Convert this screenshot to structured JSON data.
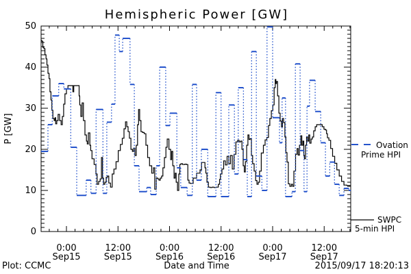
{
  "title": "Hemispheric Power [GW]",
  "footer": {
    "plot_credit": "Plot: CCMC",
    "timestamp": "2015/09/17 18:20:13"
  },
  "axes": {
    "y": {
      "label": "P [GW]",
      "min": 0,
      "max": 50,
      "major_ticks": [
        0,
        10,
        20,
        30,
        40,
        50
      ],
      "minor_step": 1
    },
    "x": {
      "label": "Date and Time",
      "minor_step_hours": 2,
      "start_hours": -5.9,
      "end_hours": 66.2,
      "major_ticks": [
        {
          "hours": 0,
          "time": "0:00",
          "date": "Sep15"
        },
        {
          "hours": 12,
          "time": "12:00",
          "date": "Sep15"
        },
        {
          "hours": 24,
          "time": "0:00",
          "date": "Sep16"
        },
        {
          "hours": 36,
          "time": "12:00",
          "date": "Sep16"
        },
        {
          "hours": 48,
          "time": "0:00",
          "date": "Sep17"
        },
        {
          "hours": 60,
          "time": "12:00",
          "date": "Sep17"
        }
      ]
    }
  },
  "legend": {
    "ovation": {
      "line1": "Ovation",
      "line2": "Prime HPI",
      "color": "#2453cc",
      "style": "dashed"
    },
    "swpc": {
      "line1": "SWPC",
      "line2": "5-min HPI",
      "color": "#000000",
      "style": "solid"
    }
  },
  "chart_data": {
    "type": "line",
    "title": "Hemispheric Power [GW]",
    "xlabel": "Date and Time",
    "ylabel": "P [GW]",
    "ylim": [
      0,
      50
    ],
    "x_unit": "hours since 2015-09-15 00:00",
    "grid": false,
    "series": [
      {
        "name": "SWPC 5-min HPI",
        "color": "#000000",
        "style": "solid",
        "points": [
          [
            -5.9,
            46.5
          ],
          [
            -5.6,
            46.3
          ],
          [
            -5.4,
            44.8
          ],
          [
            -5.1,
            44.5
          ],
          [
            -4.9,
            43
          ],
          [
            -4.6,
            42
          ],
          [
            -4.5,
            40.5
          ],
          [
            -4.1,
            38.5
          ],
          [
            -4.0,
            37.2
          ],
          [
            -3.7,
            34
          ],
          [
            -3.5,
            32
          ],
          [
            -3.3,
            29.5
          ],
          [
            -3.0,
            27.5
          ],
          [
            -2.7,
            27
          ],
          [
            -2.6,
            27.7
          ],
          [
            -2.4,
            26.2
          ],
          [
            -2.1,
            27
          ],
          [
            -1.8,
            28.5
          ],
          [
            -1.4,
            27
          ],
          [
            -1.1,
            26
          ],
          [
            -0.8,
            28
          ],
          [
            -0.5,
            31
          ],
          [
            -0.2,
            33.5
          ],
          [
            0.2,
            34.7
          ],
          [
            0.5,
            35.5
          ],
          [
            1.0,
            35.5
          ],
          [
            1.4,
            35.5
          ],
          [
            1.6,
            34
          ],
          [
            1.8,
            35.5
          ],
          [
            2.4,
            35.5
          ],
          [
            2.9,
            35.5
          ],
          [
            3.0,
            33
          ],
          [
            3.2,
            30.8
          ],
          [
            3.5,
            28
          ],
          [
            3.8,
            31.3
          ],
          [
            4.1,
            27
          ],
          [
            4.5,
            23.5
          ],
          [
            4.8,
            22
          ],
          [
            4.9,
            21.3
          ],
          [
            5.3,
            24
          ],
          [
            5.6,
            21
          ],
          [
            5.7,
            19.7
          ],
          [
            6.2,
            17.7
          ],
          [
            6.7,
            16.3
          ],
          [
            7.0,
            14
          ],
          [
            7.3,
            11.5
          ],
          [
            7.7,
            12.2
          ],
          [
            8.0,
            12.8
          ],
          [
            8.3,
            18
          ],
          [
            8.5,
            13
          ],
          [
            8.8,
            11.5
          ],
          [
            9.1,
            12
          ],
          [
            9.4,
            13.2
          ],
          [
            9.7,
            13.5
          ],
          [
            10.0,
            11.8
          ],
          [
            10.5,
            10.8
          ],
          [
            10.8,
            14
          ],
          [
            11.3,
            15.2
          ],
          [
            11.8,
            17
          ],
          [
            12.3,
            19.7
          ],
          [
            12.8,
            21.2
          ],
          [
            13.2,
            22.7
          ],
          [
            13.6,
            25
          ],
          [
            13.9,
            26.7
          ],
          [
            14.2,
            25.5
          ],
          [
            14.5,
            24.3
          ],
          [
            14.8,
            22.7
          ],
          [
            15.2,
            20
          ],
          [
            15.5,
            19.5
          ],
          [
            15.8,
            20.3
          ],
          [
            16.1,
            18.5
          ],
          [
            16.4,
            21
          ],
          [
            16.7,
            26
          ],
          [
            16.9,
            29.7
          ],
          [
            17.2,
            27
          ],
          [
            17.5,
            24.3
          ],
          [
            17.9,
            24.1
          ],
          [
            18.3,
            23.8
          ],
          [
            18.7,
            21
          ],
          [
            19.1,
            18
          ],
          [
            19.6,
            16
          ],
          [
            20.1,
            14.2
          ],
          [
            20.4,
            15.5
          ],
          [
            20.7,
            10.3
          ],
          [
            21.1,
            13
          ],
          [
            21.4,
            12.8
          ],
          [
            21.7,
            12.5
          ],
          [
            22.0,
            13
          ],
          [
            22.3,
            13.5
          ],
          [
            22.6,
            15.5
          ],
          [
            23.0,
            18
          ],
          [
            23.3,
            20.5
          ],
          [
            23.6,
            22.5
          ],
          [
            24.1,
            20
          ],
          [
            24.4,
            17.5
          ],
          [
            24.6,
            19.5
          ],
          [
            24.9,
            16
          ],
          [
            25.2,
            13
          ],
          [
            25.4,
            14.2
          ],
          [
            25.7,
            12
          ],
          [
            26.0,
            10
          ],
          [
            26.3,
            14
          ],
          [
            26.5,
            16.3
          ],
          [
            26.8,
            16.5
          ],
          [
            27.3,
            16.3
          ],
          [
            27.8,
            16.4
          ],
          [
            28.1,
            16.3
          ],
          [
            28.4,
            12.5
          ],
          [
            28.7,
            11.8
          ],
          [
            29.0,
            11.7
          ],
          [
            29.3,
            11.7
          ],
          [
            29.7,
            13
          ],
          [
            30.1,
            13
          ],
          [
            30.5,
            14.2
          ],
          [
            30.9,
            14.2
          ],
          [
            31.3,
            15
          ],
          [
            31.6,
            16.8
          ],
          [
            32.1,
            16.8
          ],
          [
            32.4,
            15.5
          ],
          [
            32.5,
            14.2
          ],
          [
            32.9,
            12
          ],
          [
            33.2,
            10.8
          ],
          [
            33.7,
            10.7
          ],
          [
            34.1,
            10.8
          ],
          [
            34.6,
            10.7
          ],
          [
            35.1,
            10.8
          ],
          [
            35.6,
            11.5
          ],
          [
            35.7,
            12.7
          ],
          [
            36.0,
            14
          ],
          [
            36.4,
            15.2
          ],
          [
            36.8,
            17.2
          ],
          [
            37.2,
            16.2
          ],
          [
            37.6,
            18.3
          ],
          [
            38.0,
            16.5
          ],
          [
            38.4,
            18.5
          ],
          [
            38.8,
            15.2
          ],
          [
            39.2,
            18.8
          ],
          [
            39.7,
            21.8
          ],
          [
            40.0,
            22.2
          ],
          [
            40.4,
            21.8
          ],
          [
            40.7,
            22
          ],
          [
            41.0,
            20
          ],
          [
            41.3,
            16
          ],
          [
            41.5,
            14.5
          ],
          [
            41.8,
            17
          ],
          [
            42.1,
            21
          ],
          [
            42.4,
            23.5
          ],
          [
            42.6,
            22.4
          ],
          [
            42.9,
            22.6
          ],
          [
            43.2,
            18.5
          ],
          [
            43.5,
            16.5
          ],
          [
            43.9,
            14.7
          ],
          [
            44.2,
            12.4
          ],
          [
            44.5,
            11.5
          ],
          [
            44.8,
            12
          ],
          [
            45.1,
            14.7
          ],
          [
            45.6,
            19.1
          ],
          [
            46.1,
            21
          ],
          [
            46.4,
            22.3
          ],
          [
            46.9,
            22.9
          ],
          [
            47.2,
            25.8
          ],
          [
            47.5,
            27.5
          ],
          [
            47.9,
            29.4
          ],
          [
            48.2,
            30.8
          ],
          [
            48.5,
            35
          ],
          [
            48.7,
            37
          ],
          [
            48.8,
            36
          ],
          [
            49.0,
            36.5
          ],
          [
            49.3,
            33
          ],
          [
            49.6,
            28.8
          ],
          [
            49.9,
            26.9
          ],
          [
            50.2,
            25.5
          ],
          [
            50.4,
            27.5
          ],
          [
            50.7,
            26.5
          ],
          [
            51.0,
            23
          ],
          [
            51.2,
            19.2
          ],
          [
            51.5,
            16.9
          ],
          [
            51.8,
            11.6
          ],
          [
            52.2,
            11
          ],
          [
            52.5,
            11.5
          ],
          [
            52.8,
            11
          ],
          [
            53.1,
            14.7
          ],
          [
            53.6,
            18.8
          ],
          [
            53.8,
            20.2
          ],
          [
            54.1,
            18.6
          ],
          [
            54.4,
            21
          ],
          [
            54.7,
            23.3
          ],
          [
            54.9,
            21
          ],
          [
            55.2,
            22
          ],
          [
            55.3,
            18.5
          ],
          [
            55.5,
            17.7
          ],
          [
            55.8,
            21
          ],
          [
            56.0,
            23
          ],
          [
            56.3,
            22
          ],
          [
            56.5,
            23.5
          ],
          [
            56.8,
            21.5
          ],
          [
            57.1,
            22.5
          ],
          [
            57.4,
            23
          ],
          [
            57.7,
            24.5
          ],
          [
            58.1,
            25.5
          ],
          [
            58.4,
            26
          ],
          [
            58.9,
            26
          ],
          [
            59.3,
            26
          ],
          [
            59.8,
            25.5
          ],
          [
            60.1,
            24.9
          ],
          [
            60.5,
            24.7
          ],
          [
            60.6,
            23.8
          ],
          [
            60.9,
            22.8
          ],
          [
            61.3,
            22.2
          ],
          [
            61.7,
            20.2
          ],
          [
            62.2,
            18.3
          ],
          [
            62.7,
            16.6
          ],
          [
            63.2,
            15
          ],
          [
            63.8,
            13.5
          ],
          [
            64.3,
            12.2
          ],
          [
            64.9,
            11.3
          ],
          [
            65.6,
            11.2
          ],
          [
            66.2,
            11.2
          ]
        ]
      },
      {
        "name": "Ovation Prime HPI",
        "color": "#2453cc",
        "style": "stepped-dotted",
        "steps": [
          [
            -5.9,
            -4.3,
            19.5
          ],
          [
            -4.3,
            -3.3,
            26
          ],
          [
            -3.3,
            -1.8,
            33
          ],
          [
            -1.8,
            -0.6,
            36
          ],
          [
            -0.6,
            1.0,
            34.7
          ],
          [
            1.0,
            2.4,
            20.5
          ],
          [
            2.4,
            4.6,
            8.8
          ],
          [
            4.6,
            5.7,
            12.5
          ],
          [
            5.7,
            6.9,
            9.3
          ],
          [
            6.9,
            8.5,
            29.7
          ],
          [
            8.5,
            9.4,
            9.3
          ],
          [
            9.4,
            10.5,
            26.6
          ],
          [
            10.5,
            11.3,
            31
          ],
          [
            11.3,
            12.3,
            47.8
          ],
          [
            12.3,
            13.1,
            43.8
          ],
          [
            13.1,
            14.8,
            47
          ],
          [
            14.8,
            15.8,
            35.8
          ],
          [
            15.8,
            16.9,
            16
          ],
          [
            16.9,
            18.7,
            9.7
          ],
          [
            18.7,
            19.6,
            10.7
          ],
          [
            19.6,
            20.9,
            9
          ],
          [
            20.9,
            21.7,
            16
          ],
          [
            21.7,
            23.1,
            40
          ],
          [
            23.1,
            24.1,
            25.8
          ],
          [
            24.1,
            25.7,
            28.8
          ],
          [
            25.7,
            26.6,
            15.5
          ],
          [
            26.6,
            28.1,
            10.7
          ],
          [
            28.1,
            29.3,
            8.8
          ],
          [
            29.3,
            30.3,
            35.8
          ],
          [
            30.3,
            31.4,
            12.5
          ],
          [
            31.4,
            32.9,
            20
          ],
          [
            32.9,
            34.8,
            8.5
          ],
          [
            34.8,
            36.0,
            33.8
          ],
          [
            36.0,
            37.8,
            8.5
          ],
          [
            37.8,
            39.1,
            30.8
          ],
          [
            39.1,
            40.0,
            14
          ],
          [
            40.0,
            41.2,
            35
          ],
          [
            41.2,
            42.1,
            17.5
          ],
          [
            42.1,
            43.1,
            8.5
          ],
          [
            43.1,
            44.2,
            43.8
          ],
          [
            44.2,
            45.5,
            13.5
          ],
          [
            45.5,
            46.7,
            10
          ],
          [
            46.7,
            48.0,
            49.8
          ],
          [
            48.0,
            49.6,
            27.7
          ],
          [
            49.6,
            50.2,
            21.6
          ],
          [
            50.2,
            51.0,
            32.5
          ],
          [
            51.0,
            52.5,
            8.5
          ],
          [
            52.5,
            53.3,
            9.7
          ],
          [
            53.3,
            54.4,
            40.8
          ],
          [
            54.4,
            55.3,
            19.7
          ],
          [
            55.3,
            56.0,
            9.7
          ],
          [
            56.0,
            56.6,
            30.5
          ],
          [
            56.6,
            57.9,
            36.8
          ],
          [
            57.9,
            59.2,
            29.2
          ],
          [
            59.2,
            60.3,
            21.6
          ],
          [
            60.3,
            61.3,
            13.5
          ],
          [
            61.3,
            62.4,
            16.9
          ],
          [
            62.4,
            63.5,
            11.5
          ],
          [
            63.5,
            64.6,
            8.8
          ],
          [
            64.6,
            65.7,
            10.5
          ],
          [
            65.7,
            66.2,
            10
          ]
        ]
      }
    ]
  }
}
